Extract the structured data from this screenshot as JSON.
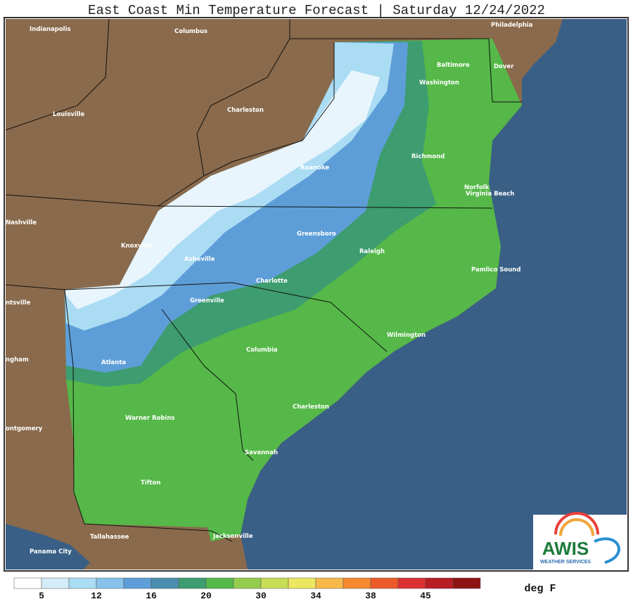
{
  "header": {
    "title": "East Coast Min Temperature Forecast | Saturday 12/24/2022"
  },
  "map": {
    "cities": [
      "Indianapolis",
      "Columbus",
      "Philadelphia",
      "Baltimore",
      "Dover",
      "Washington",
      "Charleston",
      "Louisville",
      "Richmond",
      "Roanoke",
      "Norfolk",
      "Virginia Beach",
      "Nashville",
      "Greensboro",
      "Knoxville",
      "Raleigh",
      "Asheville",
      "Pamlico Sound",
      "Charlotte",
      "ntsville",
      "Greenville",
      "Wilmington",
      "Columbia",
      "ngham",
      "Atlanta",
      "Charleston",
      "Warner Robins",
      "ontgomery",
      "Savannah",
      "Tifton",
      "Tallahassee",
      "Jacksonville",
      "Panama City"
    ]
  },
  "legend": {
    "colors": [
      "#ffffff",
      "#d4ecf9",
      "#aadcf3",
      "#86c2ea",
      "#5e9ed8",
      "#4a8eb0",
      "#3d9c70",
      "#55b848",
      "#94cc4c",
      "#c9dc56",
      "#ece660",
      "#f7b84a",
      "#f58a30",
      "#ec5a28",
      "#dc3030",
      "#b81c24",
      "#8e1414"
    ],
    "ticks": [
      5,
      12,
      16,
      20,
      30,
      34,
      38,
      45
    ],
    "unit": "deg F"
  },
  "logo": {
    "name": "AWIS",
    "subtitle": "WEATHER SERVICES"
  }
}
